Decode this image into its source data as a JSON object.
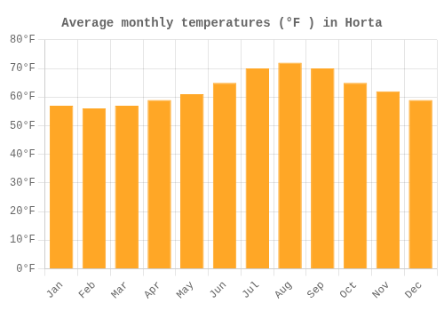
{
  "chart_data": {
    "type": "bar",
    "title": "Average monthly temperatures (°F ) in Horta",
    "categories": [
      "Jan",
      "Feb",
      "Mar",
      "Apr",
      "May",
      "Jun",
      "Jul",
      "Aug",
      "Sep",
      "Oct",
      "Nov",
      "Dec"
    ],
    "values": [
      57,
      56,
      57,
      59,
      61,
      65,
      70,
      72,
      70,
      65,
      62,
      59
    ],
    "color": "#FFA726",
    "ylim": [
      0,
      80
    ],
    "yticks": [
      {
        "value": 0,
        "label": "0°F"
      },
      {
        "value": 10,
        "label": "10°F"
      },
      {
        "value": 20,
        "label": "20°F"
      },
      {
        "value": 30,
        "label": "30°F"
      },
      {
        "value": 40,
        "label": "40°F"
      },
      {
        "value": 50,
        "label": "50°F"
      },
      {
        "value": 60,
        "label": "60°F"
      },
      {
        "value": 70,
        "label": "70°F"
      },
      {
        "value": 80,
        "label": "80°F"
      }
    ],
    "grid": true
  }
}
